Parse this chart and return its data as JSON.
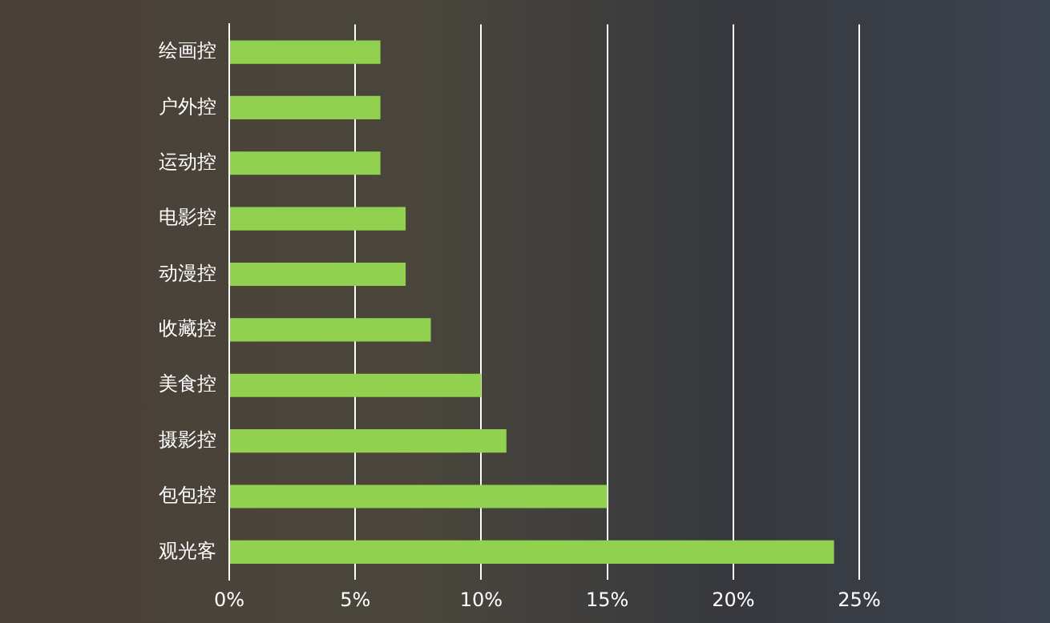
{
  "chart_data": {
    "type": "bar",
    "orientation": "horizontal",
    "categories": [
      "绘画控",
      "户外控",
      "运动控",
      "电影控",
      "动漫控",
      "收藏控",
      "美食控",
      "摄影控",
      "包包控",
      "观光客"
    ],
    "values": [
      6,
      6,
      6,
      7,
      7,
      8,
      10,
      11,
      15,
      24
    ],
    "color": "#92d050",
    "xlim": [
      0,
      25
    ],
    "xticks": [
      {
        "value": 0,
        "label": "0%"
      },
      {
        "value": 5,
        "label": "5%"
      },
      {
        "value": 10,
        "label": "10%"
      },
      {
        "value": 15,
        "label": "15%"
      },
      {
        "value": 20,
        "label": "20%"
      },
      {
        "value": 25,
        "label": "25%"
      }
    ],
    "grid": "x",
    "legend": false
  }
}
